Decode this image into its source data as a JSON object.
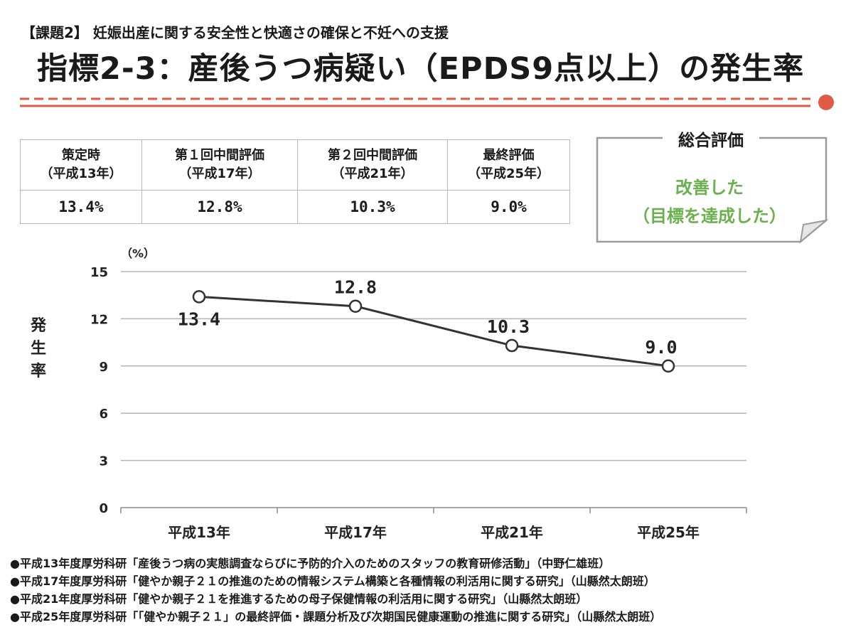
{
  "header": {
    "subtitle": "【課題2】 妊娠出産に関する安全性と快適さの確保と不妊への支援",
    "title": "指標2-3：産後うつ病疑い（EPDS9点以上）の発生率"
  },
  "table": {
    "columns": [
      {
        "label": "策定時",
        "period": "（平成13年）",
        "value": "13.4%"
      },
      {
        "label": "第１回中間評価",
        "period": "（平成17年）",
        "value": "12.8%"
      },
      {
        "label": "第２回中間評価",
        "period": "（平成21年）",
        "value": "10.3%"
      },
      {
        "label": "最終評価",
        "period": "（平成25年）",
        "value": "9.0%"
      }
    ]
  },
  "evaluation": {
    "title": "総合評価",
    "result_line1": "改善した",
    "result_line2": "（目標を達成した）"
  },
  "colors": {
    "accent_red": "#e05a45",
    "evaluation_green": "#6ab04c",
    "line": "#333333"
  },
  "chart_data": {
    "type": "line",
    "categories": [
      "平成13年",
      "平成17年",
      "平成21年",
      "平成25年"
    ],
    "values": [
      13.4,
      12.8,
      10.3,
      9.0
    ],
    "data_labels": [
      "13.4",
      "12.8",
      "10.3",
      "9.0"
    ],
    "yticks": [
      "0",
      "3",
      "6",
      "9",
      "12",
      "15"
    ],
    "ylim": [
      0,
      15
    ],
    "unit_label": "（%）",
    "ylabel": "発生率",
    "grid": true
  },
  "references": [
    "●平成13年度厚労科研「産後うつ病の実態調査ならびに予防的介入のためのスタッフの教育研修活動」（中野仁雄班）",
    "●平成17年度厚労科研「健やか親子２１の推進のための情報システム構築と各種情報の利活用に関する研究」（山縣然太朗班）",
    "●平成21年度厚労科研「健やか親子２１を推進するための母子保健情報の利活用に関する研究」（山縣然太朗班）",
    "●平成25年度厚労科研「「健やか親子２１」の最終評価・課題分析及び次期国民健康運動の推進に関する研究」（山縣然太朗班）"
  ]
}
